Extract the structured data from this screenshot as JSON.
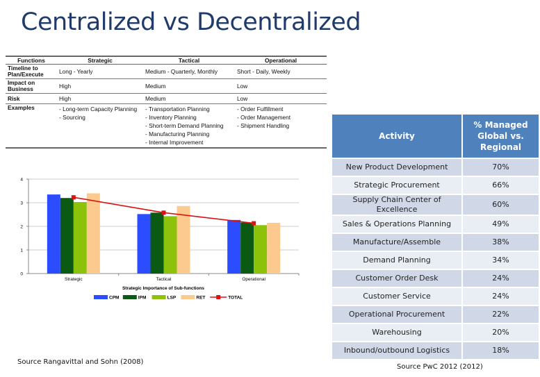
{
  "title": "Centralized vs Decentralized",
  "functions_table": {
    "headers": [
      "Functions",
      "Strategic",
      "Tactical",
      "Operational"
    ],
    "rows": [
      {
        "label": "Timeline to Plan/Execute",
        "cells": [
          "Long - Yearly",
          "Medium - Quarterly, Monthly",
          "Short - Daily, Weekly"
        ]
      },
      {
        "label": "Impact on Business",
        "cells": [
          "High",
          "Medium",
          "Low"
        ]
      },
      {
        "label": "Risk",
        "cells": [
          "High",
          "Medium",
          "Low"
        ]
      },
      {
        "label": "Examples",
        "cells": [
          "- Long-term Capacity Planning\n- Sourcing",
          "- Transportation Planning\n- Inventory Planning\n- Short-term Demand Planning\n- Manufacturing Planning\n- Internal Improvement",
          "- Order Fulfillment\n- Order Management\n- Shipment Handling"
        ]
      }
    ]
  },
  "chart_data": {
    "type": "bar",
    "title": "",
    "xlabel": "Strategic Importance of Sub-functions",
    "ylabel": "",
    "ylim": [
      0,
      4
    ],
    "yticks": [
      "0",
      "1",
      "2",
      "3",
      "4"
    ],
    "grid": true,
    "legend_position": "bottom",
    "categories": [
      "Strategic",
      "Tactical",
      "Operational"
    ],
    "series": [
      {
        "name": "CPM",
        "type": "bar",
        "color": "#2b4cff",
        "values": [
          3.35,
          2.52,
          2.27
        ]
      },
      {
        "name": "IPM",
        "type": "bar",
        "color": "#0b5a14",
        "values": [
          3.2,
          2.58,
          2.16
        ]
      },
      {
        "name": "LSP",
        "type": "bar",
        "color": "#8dc20a",
        "values": [
          3.03,
          2.43,
          2.05
        ]
      },
      {
        "name": "RET",
        "type": "bar",
        "color": "#fcc98e",
        "values": [
          3.4,
          2.86,
          2.15
        ]
      },
      {
        "name": "TOTAL",
        "type": "line",
        "color": "#dd1111",
        "values": [
          3.23,
          2.58,
          2.13
        ]
      }
    ]
  },
  "activity_table": {
    "headers": [
      "Activity",
      "% Managed Global vs. Regional"
    ],
    "rows": [
      [
        "New Product Development",
        "70%"
      ],
      [
        "Strategic Procurement",
        "66%"
      ],
      [
        "Supply Chain Center of Excellence",
        "60%"
      ],
      [
        "Sales & Operations Planning",
        "49%"
      ],
      [
        "Manufacture/Assemble",
        "38%"
      ],
      [
        "Demand Planning",
        "34%"
      ],
      [
        "Customer Order Desk",
        "24%"
      ],
      [
        "Customer Service",
        "24%"
      ],
      [
        "Operational Procurement",
        "22%"
      ],
      [
        "Warehousing",
        "20%"
      ],
      [
        "Inbound/outbound Logistics",
        "18%"
      ]
    ]
  },
  "sources": {
    "left": "Source Rangavittal and Sohn (2008)",
    "right": "Source PwC 2012 (2012)"
  },
  "colors": {
    "title": "#1f3a6b",
    "table_header": "#4f81bd",
    "row_odd": "#d0d8e8",
    "row_even": "#e9edf4"
  }
}
